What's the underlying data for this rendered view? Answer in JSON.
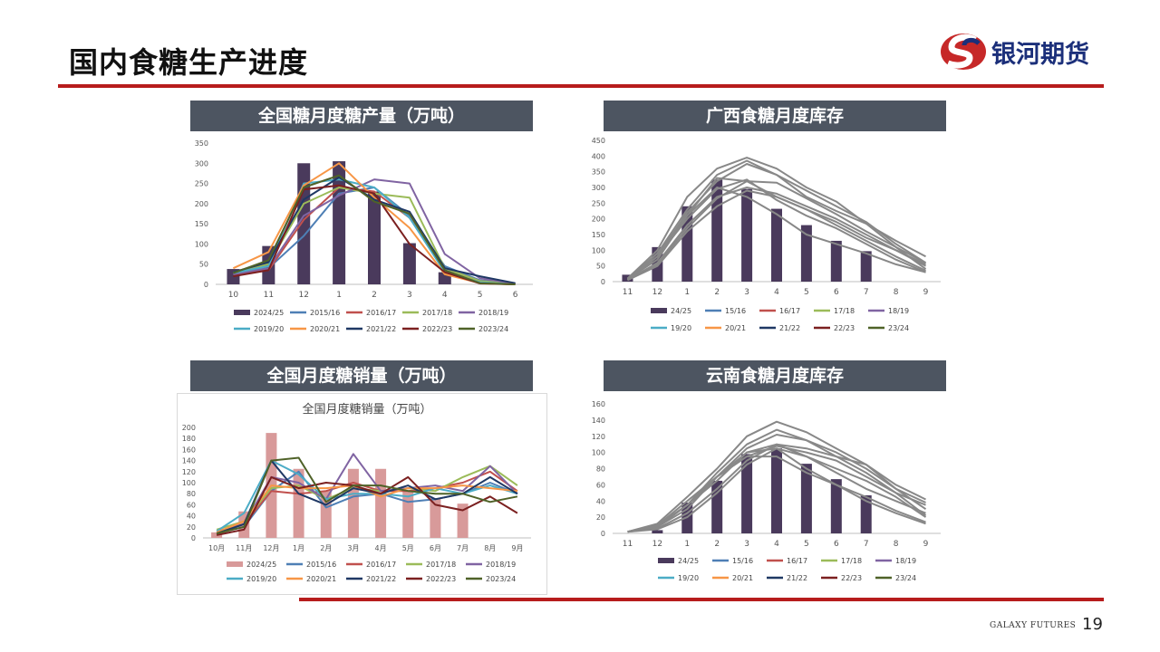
{
  "page": {
    "title": "国内食糖生产进度",
    "logo_text": "银河期货",
    "footer_brand": "GALAXY FUTURES",
    "page_number": "19"
  },
  "colors": {
    "accent_red": "#b71c1c",
    "header_bg": "#4d5561",
    "bar_dark": "#4a3a5c",
    "bar_pink": "#d89a9a"
  },
  "panels": [
    {
      "id": "national-output",
      "header": "全国糖月度糖产量（万吨）"
    },
    {
      "id": "guangxi-stock",
      "header": "广西食糖月度库存"
    },
    {
      "id": "national-sales",
      "header": "全国月度糖销量（万吨）"
    },
    {
      "id": "yunnan-stock",
      "header": "云南食糖月度库存"
    }
  ],
  "series_colors": {
    "2015/16": "#4e7fb5",
    "2016/17": "#c0504d",
    "2017/18": "#9bbb59",
    "2018/19": "#8064a2",
    "2019/20": "#4bacc6",
    "2020/21": "#f79646",
    "2021/22": "#1f3864",
    "2022/23": "#7b2020",
    "2023/24": "#4f6228"
  },
  "chart_data": [
    {
      "id": "national-output",
      "type": "bar",
      "title": "",
      "categories": [
        "10",
        "11",
        "12",
        "1",
        "2",
        "3",
        "4",
        "5",
        "6"
      ],
      "ylim": [
        0,
        350
      ],
      "yticks": [
        0,
        50,
        100,
        150,
        200,
        250,
        300,
        350
      ],
      "bar_series": {
        "name": "2024/25",
        "values": [
          38,
          95,
          300,
          305,
          230,
          102,
          30,
          null,
          null
        ]
      },
      "series": [
        {
          "name": "2015/16",
          "values": [
            30,
            40,
            120,
            225,
            240,
            170,
            45,
            10,
            2
          ]
        },
        {
          "name": "2016/17",
          "values": [
            25,
            35,
            160,
            240,
            230,
            165,
            40,
            8,
            1
          ]
        },
        {
          "name": "2017/18",
          "values": [
            30,
            50,
            200,
            240,
            225,
            215,
            40,
            8,
            1
          ]
        },
        {
          "name": "2018/19",
          "values": [
            25,
            40,
            170,
            220,
            260,
            250,
            75,
            15,
            2
          ]
        },
        {
          "name": "2019/20",
          "values": [
            28,
            45,
            250,
            260,
            240,
            165,
            30,
            5,
            0
          ]
        },
        {
          "name": "2020/21",
          "values": [
            40,
            80,
            245,
            300,
            215,
            140,
            25,
            3,
            0
          ]
        },
        {
          "name": "2021/22",
          "values": [
            30,
            55,
            210,
            265,
            210,
            180,
            40,
            20,
            3
          ]
        },
        {
          "name": "2022/23",
          "values": [
            20,
            35,
            235,
            245,
            225,
            100,
            30,
            2,
            0
          ]
        },
        {
          "name": "2023/24",
          "values": [
            28,
            60,
            240,
            270,
            205,
            175,
            35,
            3,
            0
          ]
        }
      ],
      "legend": [
        "2024/25",
        "2015/16",
        "2016/17",
        "2017/18",
        "2018/19",
        "2019/20",
        "2020/21",
        "2021/22",
        "2022/23",
        "2023/24"
      ]
    },
    {
      "id": "guangxi-stock",
      "type": "bar",
      "title": "",
      "categories": [
        "11",
        "12",
        "1",
        "2",
        "3",
        "4",
        "5",
        "6",
        "7",
        "8",
        "9"
      ],
      "ylim": [
        0,
        450
      ],
      "yticks": [
        0,
        50,
        100,
        150,
        200,
        250,
        300,
        350,
        400,
        450
      ],
      "bar_series": {
        "name": "24/25",
        "values": [
          22,
          110,
          240,
          325,
          295,
          232,
          180,
          130,
          97,
          null,
          null
        ]
      },
      "series": [
        {
          "name": "15/16",
          "values": [
            5,
            50,
            160,
            240,
            290,
            270,
            230,
            190,
            140,
            100,
            55
          ]
        },
        {
          "name": "16/17",
          "values": [
            5,
            60,
            180,
            270,
            300,
            280,
            240,
            200,
            150,
            100,
            50
          ]
        },
        {
          "name": "17/18",
          "values": [
            8,
            80,
            220,
            320,
            375,
            340,
            290,
            240,
            190,
            120,
            60
          ]
        },
        {
          "name": "18/19",
          "values": [
            5,
            55,
            170,
            265,
            320,
            315,
            265,
            215,
            160,
            110,
            60
          ]
        },
        {
          "name": "19/20",
          "values": [
            8,
            70,
            210,
            330,
            320,
            270,
            230,
            180,
            130,
            80,
            35
          ]
        },
        {
          "name": "20/21",
          "values": [
            10,
            100,
            270,
            360,
            395,
            360,
            300,
            255,
            185,
            110,
            40
          ]
        },
        {
          "name": "21/22",
          "values": [
            8,
            90,
            230,
            340,
            385,
            340,
            270,
            225,
            185,
            130,
            80
          ]
        },
        {
          "name": "22/23",
          "values": [
            5,
            90,
            210,
            300,
            270,
            215,
            150,
            120,
            90,
            55,
            30
          ]
        },
        {
          "name": "23/24",
          "values": [
            5,
            80,
            200,
            295,
            325,
            260,
            210,
            170,
            120,
            70,
            30
          ]
        }
      ],
      "legend": [
        "24/25",
        "15/16",
        "16/17",
        "17/18",
        "18/19",
        "19/20",
        "20/21",
        "21/22",
        "22/23",
        "23/24"
      ]
    },
    {
      "id": "national-sales",
      "type": "bar",
      "title": "全国月度糖销量（万吨）",
      "categories": [
        "10月",
        "11月",
        "12月",
        "1月",
        "2月",
        "3月",
        "4月",
        "5月",
        "6月",
        "7月",
        "8月",
        "9月"
      ],
      "ylim": [
        0,
        200
      ],
      "yticks": [
        0,
        20,
        40,
        60,
        80,
        100,
        120,
        140,
        160,
        180,
        200
      ],
      "bar_series": {
        "name": "2024/25",
        "values": [
          10,
          48,
          190,
          125,
          85,
          125,
          125,
          85,
          72,
          62,
          null,
          null
        ]
      },
      "series": [
        {
          "name": "2015/16",
          "values": [
            8,
            20,
            85,
            120,
            55,
            75,
            80,
            65,
            70,
            80,
            100,
            80
          ]
        },
        {
          "name": "2016/17",
          "values": [
            12,
            25,
            85,
            80,
            85,
            100,
            85,
            85,
            90,
            100,
            120,
            85
          ]
        },
        {
          "name": "2017/18",
          "values": [
            15,
            30,
            90,
            95,
            70,
            90,
            85,
            90,
            85,
            110,
            130,
            95
          ]
        },
        {
          "name": "2018/19",
          "values": [
            10,
            25,
            110,
            100,
            70,
            152,
            85,
            90,
            95,
            85,
            130,
            80
          ]
        },
        {
          "name": "2019/20",
          "values": [
            12,
            45,
            140,
            115,
            70,
            80,
            80,
            75,
            90,
            80,
            95,
            80
          ]
        },
        {
          "name": "2020/21",
          "values": [
            10,
            30,
            95,
            90,
            90,
            95,
            75,
            90,
            90,
            95,
            90,
            85
          ]
        },
        {
          "name": "2021/22",
          "values": [
            8,
            25,
            140,
            80,
            60,
            90,
            80,
            95,
            70,
            80,
            110,
            80
          ]
        },
        {
          "name": "2022/23",
          "values": [
            5,
            15,
            110,
            90,
            100,
            95,
            80,
            110,
            60,
            50,
            75,
            45
          ]
        },
        {
          "name": "2023/24",
          "values": [
            8,
            20,
            140,
            145,
            65,
            95,
            95,
            85,
            80,
            80,
            65,
            75
          ]
        }
      ],
      "legend": [
        "2024/25",
        "2015/16",
        "2016/17",
        "2017/18",
        "2018/19",
        "2019/20",
        "2020/21",
        "2021/22",
        "2022/23",
        "2023/24"
      ]
    },
    {
      "id": "yunnan-stock",
      "type": "bar",
      "title": "",
      "categories": [
        "11",
        "12",
        "1",
        "2",
        "3",
        "4",
        "5",
        "6",
        "7",
        "8",
        "9"
      ],
      "ylim": [
        0,
        160
      ],
      "yticks": [
        0,
        20,
        40,
        60,
        80,
        100,
        120,
        140,
        160
      ],
      "bar_series": {
        "name": "24/25",
        "values": [
          0,
          4,
          38,
          65,
          98,
          105,
          86,
          67,
          47,
          null,
          null
        ]
      },
      "series": [
        {
          "name": "15/16",
          "values": [
            2,
            5,
            20,
            50,
            85,
            105,
            95,
            80,
            65,
            45,
            20
          ]
        },
        {
          "name": "16/17",
          "values": [
            2,
            8,
            35,
            70,
            95,
            108,
            100,
            90,
            70,
            50,
            35
          ]
        },
        {
          "name": "17/18",
          "values": [
            2,
            10,
            35,
            75,
            110,
            128,
            115,
            100,
            80,
            55,
            30
          ]
        },
        {
          "name": "18/19",
          "values": [
            2,
            6,
            25,
            55,
            90,
            110,
            95,
            75,
            55,
            40,
            25
          ]
        },
        {
          "name": "19/20",
          "values": [
            2,
            8,
            30,
            70,
            105,
            122,
            115,
            95,
            75,
            50,
            22
          ]
        },
        {
          "name": "20/21",
          "values": [
            2,
            12,
            45,
            80,
            120,
            138,
            125,
            105,
            85,
            60,
            42
          ]
        },
        {
          "name": "21/22",
          "values": [
            2,
            8,
            35,
            70,
            100,
            110,
            105,
            95,
            85,
            55,
            38
          ]
        },
        {
          "name": "22/23",
          "values": [
            2,
            10,
            40,
            70,
            95,
            95,
            75,
            60,
            45,
            28,
            14
          ]
        },
        {
          "name": "23/24",
          "values": [
            2,
            8,
            35,
            65,
            100,
            105,
            80,
            60,
            40,
            25,
            12
          ]
        }
      ],
      "legend": [
        "24/25",
        "15/16",
        "16/17",
        "17/18",
        "18/19",
        "19/20",
        "20/21",
        "21/22",
        "22/23",
        "23/24"
      ]
    }
  ]
}
